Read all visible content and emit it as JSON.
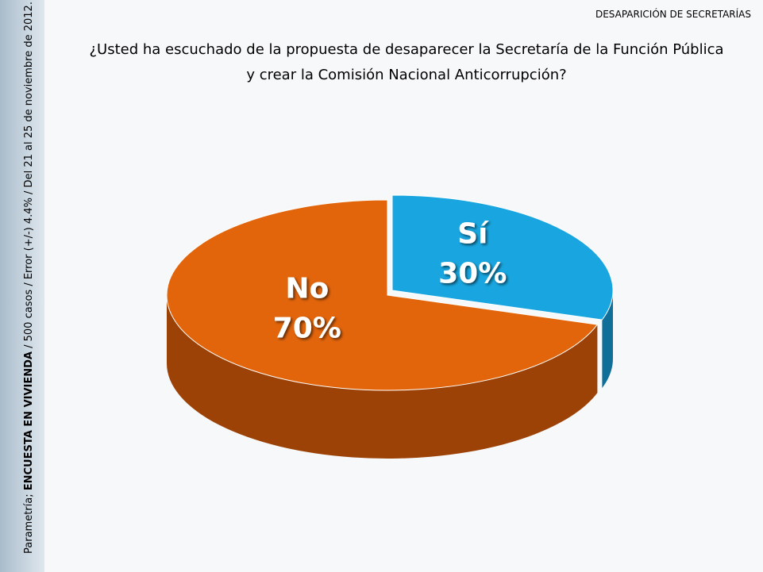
{
  "header": "DESAPARICIÓN DE SECRETARÍAS",
  "source": {
    "prefix": "Parametría; ",
    "bold": "ENCUESTA EN VIVIENDA",
    "rest": " / 500 casos / Error (+/-) 4.4% / Del 21 al 25 de noviembre de 2012."
  },
  "chart_data": {
    "type": "pie",
    "title": [
      "¿Usted ha escuchado de la propuesta de desaparecer la Secretaría de la Función Pública",
      "y crear la Comisión Nacional Anticorrupción?"
    ],
    "categories": [
      "Sí",
      "No"
    ],
    "values": [
      30,
      70
    ],
    "value_labels": [
      "30%",
      "70%"
    ],
    "colors": [
      "#19a6e0",
      "#e2650c"
    ],
    "side_colors": [
      "#0f6f98",
      "#9c4206"
    ]
  }
}
